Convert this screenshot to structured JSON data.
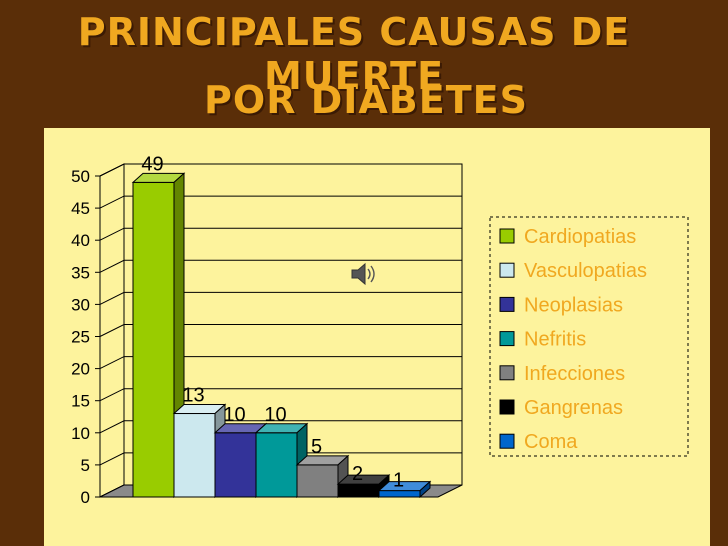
{
  "slide": {
    "title_line1": "PRINCIPALES CAUSAS DE MUERTE",
    "title_line2": "POR DIABETES"
  },
  "colors": {
    "background": "#5a2e08",
    "panel": "#fdf39d",
    "title": "#f0a820"
  },
  "sound_icon": "speaker-icon",
  "chart_data": {
    "type": "bar",
    "title": "",
    "xlabel": "",
    "ylabel": "",
    "ylim": [
      0,
      50
    ],
    "yticks": [
      0,
      5,
      10,
      15,
      20,
      25,
      30,
      35,
      40,
      45,
      50
    ],
    "grid": true,
    "legend_position": "right",
    "categories": [
      "Cardiopatias",
      "Vasculopatias",
      "Neoplasias",
      "Nefritis",
      "Infecciones",
      "Gangrenas",
      "Coma"
    ],
    "values": [
      49,
      13,
      10,
      10,
      5,
      2,
      1
    ],
    "colors": [
      "#99cc00",
      "#cce8ee",
      "#333399",
      "#009999",
      "#808080",
      "#000000",
      "#0066cc"
    ]
  }
}
